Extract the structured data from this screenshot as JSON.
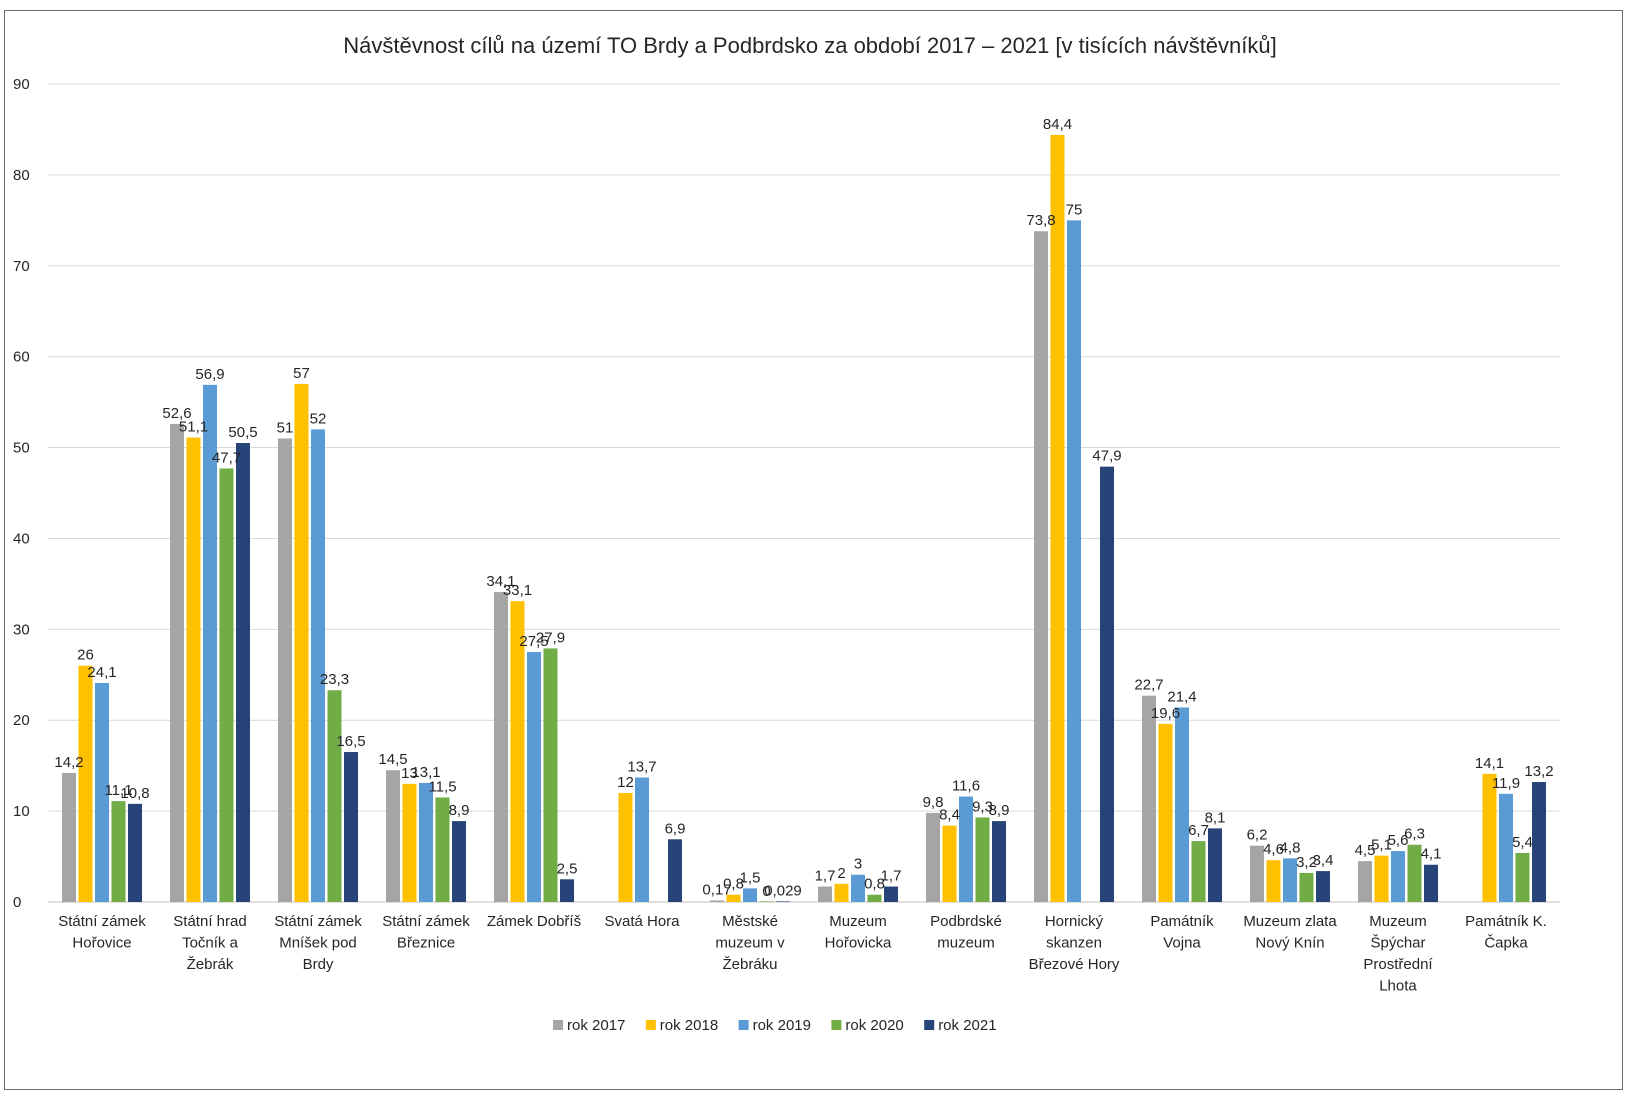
{
  "chart_data": {
    "type": "bar",
    "title": "Návštěvnost cílů na území TO Brdy a Podbrdsko za období 2017 – 2021 [v tisících návštěvníků]",
    "xlabel": "",
    "ylabel": "",
    "ylim": [
      0,
      90
    ],
    "y_ticks": [
      "0",
      "10",
      "20",
      "30",
      "40",
      "50",
      "60",
      "70",
      "80",
      "90"
    ],
    "grid": true,
    "legend_position": "bottom",
    "categories": [
      [
        "Státní zámek",
        "Hořovice"
      ],
      [
        "Státní hrad",
        "Točník a",
        "Žebrák"
      ],
      [
        "Státní zámek",
        "Mníšek pod",
        "Brdy"
      ],
      [
        "Státní zámek",
        "Březnice"
      ],
      [
        "Zámek Dobříš"
      ],
      [
        "Svatá Hora"
      ],
      [
        "Městské",
        "muzeum v",
        "Žebráku"
      ],
      [
        "Muzeum",
        "Hořovicka"
      ],
      [
        "Podbrdské",
        "muzeum"
      ],
      [
        "Hornický",
        "skanzen",
        "Březové Hory"
      ],
      [
        "Památník",
        "Vojna"
      ],
      [
        "Muzeum zlata",
        "Nový Knín"
      ],
      [
        "Muzeum",
        "Špýchar",
        "Prostřední",
        "Lhota"
      ],
      [
        "Památník K.",
        "Čapka"
      ]
    ],
    "series": [
      {
        "name": "rok 2017",
        "color": "#a5a5a5",
        "values": [
          14.2,
          52.6,
          51,
          14.5,
          34.1,
          null,
          0.17,
          1.7,
          9.8,
          73.8,
          22.7,
          6.2,
          4.5,
          null
        ],
        "labels": [
          "14,2",
          "52,6",
          "51",
          "14,5",
          "34,1",
          "",
          "0,17",
          "1,7",
          "9,8",
          "73,8",
          "22,7",
          "6,2",
          "4,5",
          ""
        ]
      },
      {
        "name": "rok 2018",
        "color": "#ffc000",
        "values": [
          26,
          51.1,
          57,
          13,
          33.1,
          12,
          0.8,
          2,
          8.4,
          84.4,
          19.6,
          4.6,
          5.1,
          14.1
        ],
        "labels": [
          "26",
          "51,1",
          "57",
          "13",
          "33,1",
          "12",
          "0,8",
          "2",
          "8,4",
          "84,4",
          "19,6",
          "4,6",
          "5,1",
          "14,1"
        ]
      },
      {
        "name": "rok 2019",
        "color": "#5b9bd5",
        "values": [
          24.1,
          56.9,
          52,
          13.1,
          27.5,
          13.7,
          1.5,
          3,
          11.6,
          75,
          21.4,
          4.8,
          5.6,
          11.9
        ],
        "labels": [
          "24,1",
          "56,9",
          "52",
          "13,1",
          "27,5",
          "13,7",
          "1,5",
          "3",
          "11,6",
          "75",
          "21,4",
          "4,8",
          "5,6",
          "11,9"
        ]
      },
      {
        "name": "rok 2020",
        "color": "#70ad47",
        "values": [
          11.1,
          47.7,
          23.3,
          11.5,
          27.9,
          null,
          0,
          0.8,
          9.3,
          null,
          6.7,
          3.2,
          6.3,
          5.4
        ],
        "labels": [
          "11,1",
          "47,7",
          "23,3",
          "11,5",
          "27,9",
          "",
          "0",
          "0,8",
          "9,3",
          "",
          "6,7",
          "3,2",
          "6,3",
          "5,4"
        ]
      },
      {
        "name": "rok 2021",
        "color": "#264478",
        "values": [
          10.8,
          50.5,
          16.5,
          8.9,
          2.5,
          6.9,
          0.029,
          1.7,
          8.9,
          47.9,
          8.1,
          3.4,
          4.1,
          13.2
        ],
        "labels": [
          "10,8",
          "50,5",
          "16,5",
          "8,9",
          "2,5",
          "6,9",
          "0,029",
          "1,7",
          "8,9",
          "47,9",
          "8,1",
          "3,4",
          "4,1",
          "13,2"
        ]
      }
    ]
  }
}
